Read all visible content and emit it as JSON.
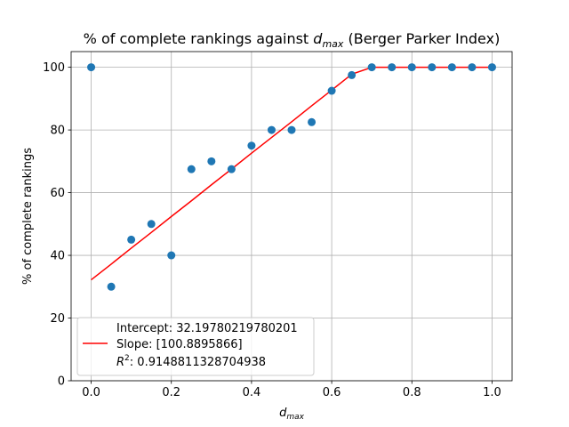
{
  "chart_data": {
    "type": "scatter",
    "title": {
      "prefix": "% of complete rankings against ",
      "var": "d",
      "sub": "max",
      "suffix": " (Berger Parker Index)"
    },
    "xlabel": {
      "var": "d",
      "sub": "max"
    },
    "ylabel": "% of complete rankings",
    "xlim": [
      -0.05,
      1.05
    ],
    "ylim": [
      0,
      105
    ],
    "xticks": [
      0.0,
      0.2,
      0.4,
      0.6,
      0.8,
      1.0
    ],
    "xtick_labels": [
      "0.0",
      "0.2",
      "0.4",
      "0.6",
      "0.8",
      "1.0"
    ],
    "yticks": [
      0,
      20,
      40,
      60,
      80,
      100
    ],
    "ytick_labels": [
      "0",
      "20",
      "40",
      "60",
      "80",
      "100"
    ],
    "grid": true,
    "points": {
      "x": [
        0.0,
        0.05,
        0.1,
        0.15,
        0.2,
        0.25,
        0.3,
        0.35,
        0.4,
        0.45,
        0.5,
        0.55,
        0.6,
        0.65,
        0.7,
        0.75,
        0.8,
        0.85,
        0.9,
        0.95,
        1.0
      ],
      "y": [
        100,
        30,
        45,
        50,
        40,
        67.5,
        70,
        67.5,
        75,
        80,
        80,
        82.5,
        92.5,
        97.5,
        100,
        100,
        100,
        100,
        100,
        100,
        100
      ],
      "color": "#1f77b4"
    },
    "fit_line": {
      "x": [
        0.0,
        0.05,
        0.1,
        0.15,
        0.2,
        0.25,
        0.3,
        0.35,
        0.4,
        0.45,
        0.5,
        0.55,
        0.6,
        0.65,
        0.7,
        0.75,
        0.8,
        0.85,
        0.9,
        0.95,
        1.0
      ],
      "y": [
        32.2,
        37.2,
        42.3,
        47.3,
        52.4,
        57.4,
        62.5,
        67.5,
        72.6,
        77.6,
        82.6,
        87.7,
        92.7,
        97.8,
        100,
        100,
        100,
        100,
        100,
        100,
        100
      ],
      "color": "#ff0000"
    },
    "legend": {
      "placement": "lower-left",
      "line1": "Intercept: 32.19780219780201",
      "line2": "Slope: [100.8895866]",
      "line3_label": "R",
      "line3_sup": "2",
      "line3_value": ": 0.9148811328704938"
    }
  }
}
